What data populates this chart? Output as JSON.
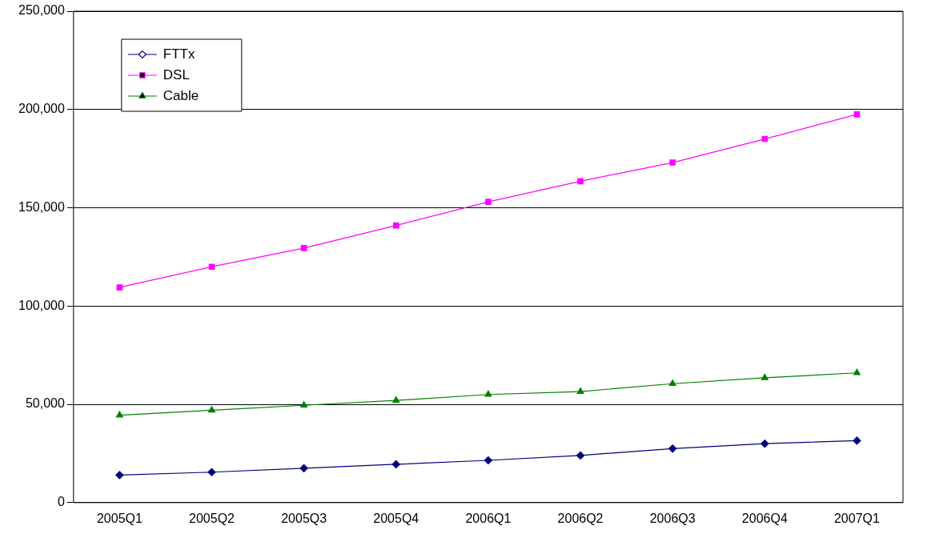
{
  "chart_data": {
    "type": "line",
    "categories": [
      "2005Q1",
      "2005Q2",
      "2005Q3",
      "2005Q4",
      "2006Q1",
      "2006Q2",
      "2006Q3",
      "2006Q4",
      "2007Q1"
    ],
    "series": [
      {
        "name": "FTTx",
        "color": "#000080",
        "marker": "diamond",
        "values": [
          14000,
          15500,
          17500,
          19500,
          21500,
          24000,
          27500,
          30000,
          31500
        ]
      },
      {
        "name": "DSL",
        "color": "#ff00ff",
        "marker": "square",
        "values": [
          109500,
          120000,
          129500,
          141000,
          153000,
          163500,
          173000,
          185000,
          197500
        ]
      },
      {
        "name": "Cable",
        "color": "#008000",
        "marker": "triangle",
        "values": [
          44500,
          47000,
          49500,
          52000,
          55000,
          56500,
          60500,
          63500,
          66000
        ]
      }
    ],
    "ylim": [
      0,
      250000
    ],
    "yticks": [
      {
        "value": 0,
        "label": "0"
      },
      {
        "value": 50000,
        "label": "50,000"
      },
      {
        "value": 100000,
        "label": "100,000"
      },
      {
        "value": 150000,
        "label": "150,000"
      },
      {
        "value": 200000,
        "label": "200,000"
      },
      {
        "value": 250000,
        "label": "250,000"
      }
    ],
    "grid": "y",
    "legend": "top left"
  }
}
